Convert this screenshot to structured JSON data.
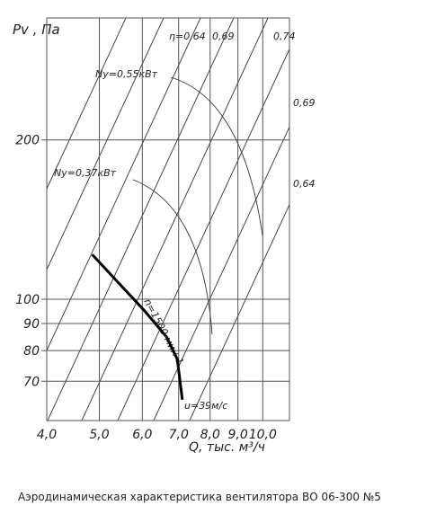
{
  "chart_data": {
    "type": "line",
    "x_label": "Q, тыс. м³/ч",
    "y_label": "Pv , Па",
    "xscale": "log",
    "yscale": "log",
    "grid": true,
    "xlim": [
      4,
      11.2
    ],
    "ylim": [
      59,
      340
    ],
    "xticks": [
      {
        "value": 4,
        "label": "4,0"
      },
      {
        "value": 5,
        "label": "5,0"
      },
      {
        "value": 6,
        "label": "6,0"
      },
      {
        "value": 7,
        "label": "7,0"
      },
      {
        "value": 8,
        "label": "8,0"
      },
      {
        "value": 9,
        "label": "9,0"
      },
      {
        "value": 10,
        "label": "10,0"
      }
    ],
    "yticks": [
      70,
      80,
      90,
      100,
      200
    ],
    "series": [
      {
        "name": "n=1500 мин-1",
        "color": "#000000",
        "x": [
          4.85,
          6.04,
          6.65,
          6.96,
          7.11
        ],
        "values": [
          121.5,
          95.4,
          84.9,
          77,
          64.6
        ]
      }
    ],
    "annotations": [
      "η=0,64",
      "0,69",
      "0,74",
      "0,69",
      "0,64",
      "Nу=0,55кВт",
      "Nу=0,37кВт",
      "u=39м/с"
    ],
    "caption": "Аэродинамическая характеристика вентилятора ВО 06-300 №5"
  }
}
